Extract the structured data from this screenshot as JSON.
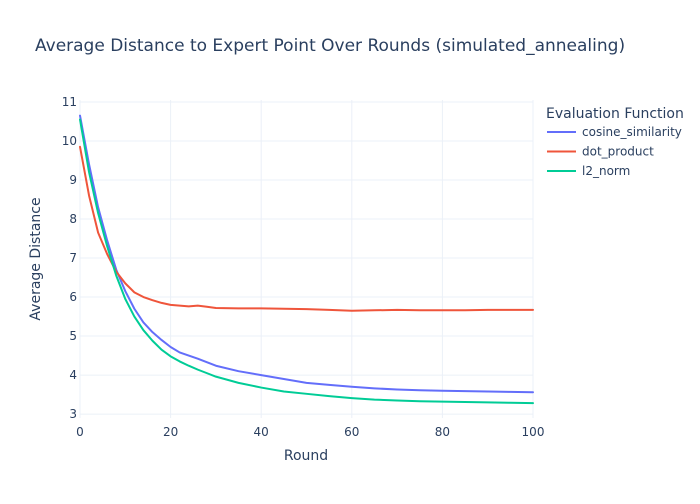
{
  "chart_data": {
    "type": "line",
    "title": "Average Distance to Expert Point Over Rounds (simulated_annealing)",
    "xlabel": "Round",
    "ylabel": "Average Distance",
    "xlim": [
      0,
      100
    ],
    "ylim": [
      2.9,
      11.05
    ],
    "x_ticks": [
      0,
      20,
      40,
      60,
      80,
      100
    ],
    "y_ticks": [
      3,
      4,
      5,
      6,
      7,
      8,
      9,
      10,
      11
    ],
    "grid": true,
    "legend": {
      "title": "Evaluation Function",
      "position": "top-right"
    },
    "x": [
      0,
      2,
      4,
      6,
      8,
      10,
      12,
      14,
      16,
      18,
      20,
      22,
      24,
      26,
      28,
      30,
      35,
      40,
      45,
      50,
      55,
      60,
      65,
      70,
      75,
      80,
      85,
      90,
      95,
      100
    ],
    "series": [
      {
        "name": "cosine_similarity",
        "color": "#636efa",
        "values": [
          10.65,
          9.4,
          8.3,
          7.45,
          6.7,
          6.15,
          5.7,
          5.35,
          5.1,
          4.9,
          4.72,
          4.58,
          4.5,
          4.42,
          4.33,
          4.24,
          4.1,
          4.0,
          3.9,
          3.8,
          3.75,
          3.7,
          3.66,
          3.63,
          3.61,
          3.6,
          3.59,
          3.58,
          3.57,
          3.56
        ]
      },
      {
        "name": "dot_product",
        "color": "#EF553B",
        "values": [
          9.85,
          8.6,
          7.65,
          7.1,
          6.65,
          6.35,
          6.12,
          6.0,
          5.92,
          5.85,
          5.8,
          5.78,
          5.76,
          5.78,
          5.75,
          5.72,
          5.71,
          5.71,
          5.7,
          5.69,
          5.67,
          5.65,
          5.66,
          5.67,
          5.66,
          5.66,
          5.66,
          5.67,
          5.67,
          5.67
        ]
      },
      {
        "name": "l2_norm",
        "color": "#00cc96",
        "values": [
          10.55,
          9.2,
          8.15,
          7.3,
          6.55,
          5.95,
          5.5,
          5.15,
          4.88,
          4.65,
          4.48,
          4.35,
          4.24,
          4.14,
          4.05,
          3.96,
          3.8,
          3.68,
          3.58,
          3.52,
          3.46,
          3.41,
          3.37,
          3.35,
          3.33,
          3.32,
          3.31,
          3.3,
          3.29,
          3.28
        ]
      }
    ]
  }
}
